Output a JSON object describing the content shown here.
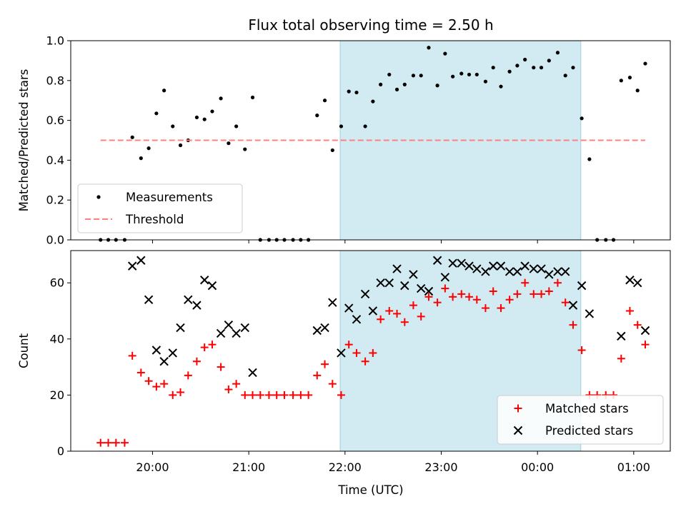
{
  "chart_data": {
    "type": "scatter",
    "title": "Flux total observing time = 2.50 h",
    "xlabel": "Time (UTC)",
    "xticks": [
      {
        "label": "20:00",
        "x": 20.0
      },
      {
        "label": "21:00",
        "x": 21.0
      },
      {
        "label": "22:00",
        "x": 22.0
      },
      {
        "label": "23:00",
        "x": 23.0
      },
      {
        "label": "00:00",
        "x": 24.0
      },
      {
        "label": "01:00",
        "x": 25.0
      }
    ],
    "xlim": [
      19.15,
      25.38
    ],
    "highlight_span": [
      21.95,
      24.45
    ],
    "colors": {
      "span": "#add8e6",
      "threshold": "#ff7f7f",
      "matched": "#ff0000",
      "predicted": "#000000",
      "measurement": "#000000"
    },
    "panels": [
      {
        "ylabel": "Matched/Predicted stars",
        "ylim": [
          0,
          1.0
        ],
        "yticks": [
          "0.0",
          "0.2",
          "0.4",
          "0.6",
          "0.8",
          "1.0"
        ],
        "legend_position": "lower-left",
        "series": [
          {
            "name": "Measurements",
            "marker": "dot",
            "x": [
              19.46,
              19.54,
              19.62,
              19.71,
              19.79,
              19.88,
              19.96,
              20.04,
              20.12,
              20.21,
              20.29,
              20.37,
              20.46,
              20.54,
              20.62,
              20.71,
              20.79,
              20.87,
              20.96,
              21.04,
              21.12,
              21.21,
              21.29,
              21.37,
              21.46,
              21.54,
              21.62,
              21.71,
              21.79,
              21.87,
              21.96,
              22.04,
              22.12,
              22.21,
              22.29,
              22.37,
              22.46,
              22.54,
              22.62,
              22.71,
              22.79,
              22.87,
              22.96,
              23.04,
              23.12,
              23.21,
              23.29,
              23.37,
              23.46,
              23.54,
              23.62,
              23.71,
              23.79,
              23.87,
              23.96,
              24.04,
              24.12,
              24.21,
              24.29,
              24.37,
              24.46,
              24.54,
              24.62,
              24.71,
              24.79,
              24.87,
              24.96,
              25.04,
              25.12
            ],
            "y": [
              0.0,
              0.0,
              0.0,
              0.0,
              0.515,
              0.41,
              0.46,
              0.635,
              0.75,
              0.57,
              0.475,
              0.5,
              0.615,
              0.605,
              0.645,
              0.71,
              0.485,
              0.57,
              0.455,
              0.715,
              0.0,
              0.0,
              0.0,
              0.0,
              0.0,
              0.0,
              0.0,
              0.625,
              0.7,
              0.45,
              0.57,
              0.745,
              0.74,
              0.57,
              0.695,
              0.78,
              0.83,
              0.755,
              0.78,
              0.825,
              0.825,
              0.965,
              0.775,
              0.935,
              0.82,
              0.835,
              0.83,
              0.83,
              0.795,
              0.865,
              0.77,
              0.845,
              0.875,
              0.905,
              0.865,
              0.865,
              0.9,
              0.94,
              0.825,
              0.865,
              0.61,
              0.405,
              0.0,
              0.0,
              0.0,
              0.8,
              0.815,
              0.75,
              0.885
            ]
          },
          {
            "name": "Threshold",
            "marker": "dashed-line",
            "x": [
              19.46,
              25.12
            ],
            "y": [
              0.5,
              0.5
            ]
          }
        ]
      },
      {
        "ylabel": "Count",
        "ylim": [
          0,
          71.5
        ],
        "yticks": [
          "0",
          "20",
          "40",
          "60"
        ],
        "legend_position": "lower-right",
        "series": [
          {
            "name": "Matched stars",
            "marker": "plus",
            "x": [
              19.46,
              19.54,
              19.62,
              19.71,
              19.79,
              19.88,
              19.96,
              20.04,
              20.12,
              20.21,
              20.29,
              20.37,
              20.46,
              20.54,
              20.62,
              20.71,
              20.79,
              20.87,
              20.96,
              21.04,
              21.12,
              21.21,
              21.29,
              21.37,
              21.46,
              21.54,
              21.62,
              21.71,
              21.79,
              21.87,
              21.96,
              22.04,
              22.12,
              22.21,
              22.29,
              22.37,
              22.46,
              22.54,
              22.62,
              22.71,
              22.79,
              22.87,
              22.96,
              23.04,
              23.12,
              23.21,
              23.29,
              23.37,
              23.46,
              23.54,
              23.62,
              23.71,
              23.79,
              23.87,
              23.96,
              24.04,
              24.12,
              24.21,
              24.29,
              24.37,
              24.46,
              24.54,
              24.62,
              24.71,
              24.79,
              24.87,
              24.96,
              25.04,
              25.12
            ],
            "y": [
              3,
              3,
              3,
              3,
              34,
              28,
              25,
              23,
              24,
              20,
              21,
              27,
              32,
              37,
              38,
              30,
              22,
              24,
              20,
              20,
              20,
              20,
              20,
              20,
              20,
              20,
              20,
              27,
              31,
              24,
              20,
              38,
              35,
              32,
              35,
              47,
              50,
              49,
              46,
              52,
              48,
              55,
              53,
              58,
              55,
              56,
              55,
              54,
              51,
              57,
              51,
              54,
              56,
              60,
              56,
              56,
              57,
              60,
              53,
              45,
              36,
              20,
              20,
              20,
              20,
              33,
              50,
              45,
              38
            ]
          },
          {
            "name": "Predicted stars",
            "marker": "x",
            "x": [
              19.79,
              19.88,
              19.96,
              20.04,
              20.12,
              20.21,
              20.29,
              20.37,
              20.46,
              20.54,
              20.62,
              20.71,
              20.79,
              20.87,
              20.96,
              21.04,
              21.71,
              21.79,
              21.87,
              21.96,
              22.04,
              22.12,
              22.21,
              22.29,
              22.37,
              22.46,
              22.54,
              22.62,
              22.71,
              22.79,
              22.87,
              22.96,
              23.04,
              23.12,
              23.21,
              23.29,
              23.37,
              23.46,
              23.54,
              23.62,
              23.71,
              23.79,
              23.87,
              23.96,
              24.04,
              24.12,
              24.21,
              24.29,
              24.37,
              24.46,
              24.54,
              24.87,
              24.96,
              25.04,
              25.12
            ],
            "y": [
              66,
              68,
              54,
              36,
              32,
              35,
              44,
              54,
              52,
              61,
              59,
              42,
              45,
              42,
              44,
              28,
              43,
              44,
              53,
              35,
              51,
              47,
              56,
              50,
              60,
              60,
              65,
              59,
              63,
              58,
              57,
              68,
              62,
              67,
              67,
              66,
              65,
              64,
              66,
              66,
              64,
              64,
              66,
              65,
              65,
              63,
              64,
              64,
              52,
              59,
              49,
              41,
              61,
              60,
              43
            ]
          }
        ]
      }
    ]
  }
}
